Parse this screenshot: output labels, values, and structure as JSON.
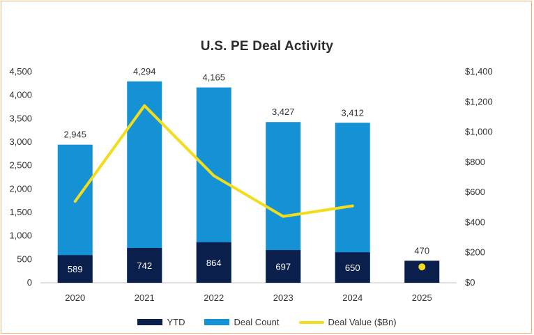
{
  "chart_data": {
    "type": "bar",
    "title": "U.S. PE Deal Activity",
    "categories": [
      "2020",
      "2021",
      "2022",
      "2023",
      "2024",
      "2025"
    ],
    "series": [
      {
        "name": "YTD",
        "type": "bar",
        "axis": "left",
        "values": [
          589,
          742,
          864,
          697,
          650,
          470
        ],
        "labels": [
          "589",
          "742",
          "864",
          "697",
          "650",
          ""
        ]
      },
      {
        "name": "Deal Count",
        "type": "bar",
        "axis": "left",
        "values": [
          2945,
          4294,
          4165,
          3427,
          3412,
          null
        ],
        "labels": [
          "2,945",
          "4,294",
          "4,165",
          "3,427",
          "3,412",
          "470"
        ]
      },
      {
        "name": "Deal Value ($Bn)",
        "type": "line",
        "axis": "right",
        "values": [
          540,
          1175,
          710,
          440,
          510,
          105
        ]
      }
    ],
    "y_left": {
      "lim": [
        0,
        4500
      ],
      "ticks": [
        "0",
        "500",
        "1,000",
        "1,500",
        "2,000",
        "2,500",
        "3,000",
        "3,500",
        "4,000",
        "4,500"
      ]
    },
    "y_right": {
      "lim": [
        0,
        1400
      ],
      "ticks": [
        "$0",
        "$200",
        "$400",
        "$600",
        "$800",
        "$1,000",
        "$1,200",
        "$1,400"
      ]
    },
    "colors": {
      "ytd": "#0b1f4d",
      "deal_count": "#1592d6",
      "deal_value": "#f2dc1b"
    },
    "legend": "bottom-center",
    "grid": false
  }
}
